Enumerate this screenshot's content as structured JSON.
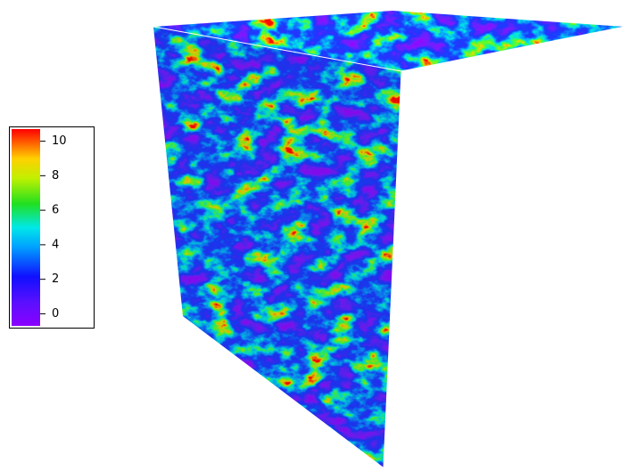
{
  "colorbar": {
    "range": [
      -0.7,
      10.7
    ],
    "ticks": [
      0,
      2,
      4,
      6,
      8,
      10
    ]
  }
}
